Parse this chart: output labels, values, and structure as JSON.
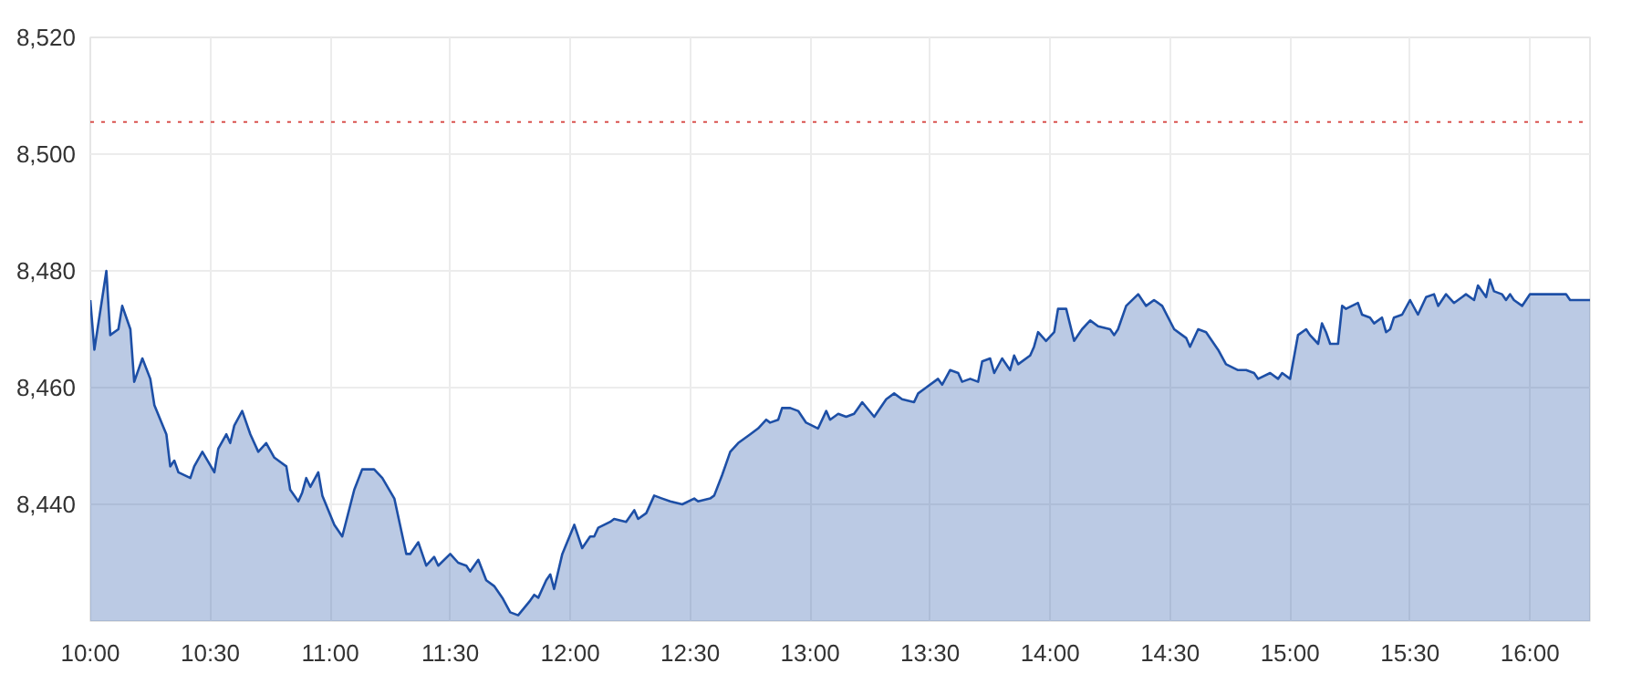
{
  "chart_data": {
    "type": "area",
    "x": [
      10.0,
      10.017,
      10.067,
      10.083,
      10.117,
      10.133,
      10.167,
      10.183,
      10.217,
      10.25,
      10.267,
      10.317,
      10.333,
      10.35,
      10.367,
      10.417,
      10.433,
      10.467,
      10.517,
      10.533,
      10.567,
      10.583,
      10.6,
      10.633,
      10.667,
      10.7,
      10.733,
      10.767,
      10.817,
      10.833,
      10.867,
      10.883,
      10.9,
      10.917,
      10.95,
      10.967,
      11.017,
      11.05,
      11.1,
      11.133,
      11.183,
      11.217,
      11.267,
      11.317,
      11.333,
      11.367,
      11.4,
      11.433,
      11.45,
      11.5,
      11.533,
      11.567,
      11.583,
      11.617,
      11.65,
      11.683,
      11.717,
      11.75,
      11.783,
      11.833,
      11.85,
      11.867,
      11.9,
      11.917,
      11.933,
      11.967,
      12.017,
      12.05,
      12.083,
      12.1,
      12.117,
      12.167,
      12.183,
      12.233,
      12.267,
      12.283,
      12.317,
      12.35,
      12.383,
      12.417,
      12.467,
      12.517,
      12.533,
      12.583,
      12.6,
      12.633,
      12.667,
      12.7,
      12.75,
      12.783,
      12.817,
      12.833,
      12.867,
      12.883,
      12.917,
      12.95,
      12.983,
      13.033,
      13.067,
      13.083,
      13.117,
      13.15,
      13.183,
      13.2,
      13.217,
      13.267,
      13.317,
      13.35,
      13.383,
      13.433,
      13.45,
      13.483,
      13.533,
      13.55,
      13.583,
      13.617,
      13.633,
      13.667,
      13.7,
      13.717,
      13.75,
      13.767,
      13.8,
      13.833,
      13.85,
      13.867,
      13.917,
      13.933,
      13.95,
      13.983,
      14.017,
      14.033,
      14.067,
      14.1,
      14.133,
      14.167,
      14.2,
      14.25,
      14.267,
      14.283,
      14.317,
      14.367,
      14.4,
      14.433,
      14.467,
      14.517,
      14.55,
      14.567,
      14.583,
      14.617,
      14.65,
      14.683,
      14.7,
      14.733,
      14.783,
      14.817,
      14.85,
      14.867,
      14.917,
      14.95,
      14.967,
      15.0,
      15.033,
      15.067,
      15.083,
      15.117,
      15.133,
      15.15,
      15.167,
      15.2,
      15.217,
      15.233,
      15.283,
      15.3,
      15.333,
      15.35,
      15.383,
      15.4,
      15.417,
      15.433,
      15.467,
      15.5,
      15.533,
      15.567,
      15.6,
      15.617,
      15.65,
      15.683,
      15.717,
      15.733,
      15.767,
      15.783,
      15.817,
      15.833,
      15.85,
      15.883,
      15.9,
      15.917,
      15.933,
      15.967,
      16.0,
      16.15,
      16.167,
      16.25
    ],
    "series": [
      {
        "color": "#1d4fa6",
        "values": [
          8475,
          8466.5,
          8480,
          8469,
          8470,
          8474,
          8470,
          8461,
          8465,
          8461.5,
          8457,
          8452,
          8446.5,
          8447.5,
          8445.5,
          8444.5,
          8446.5,
          8449,
          8445.5,
          8449.5,
          8452,
          8450.5,
          8453.5,
          8456,
          8452,
          8449,
          8450.5,
          8448,
          8446.5,
          8442.5,
          8440.5,
          8442,
          8444.5,
          8443,
          8445.5,
          8441.5,
          8436.5,
          8434.5,
          8442.5,
          8446,
          8446,
          8444.5,
          8441,
          8431.5,
          8431.5,
          8433.5,
          8429.5,
          8431,
          8429.5,
          8431.5,
          8430,
          8429.5,
          8428.5,
          8430.5,
          8427,
          8426,
          8424,
          8421.5,
          8421,
          8423.5,
          8424.5,
          8424,
          8427,
          8428,
          8425.5,
          8431.5,
          8436.5,
          8432.5,
          8434.5,
          8434.5,
          8436,
          8437,
          8437.5,
          8437,
          8439,
          8437.5,
          8438.5,
          8441.5,
          8441,
          8440.5,
          8440,
          8441,
          8440.5,
          8441,
          8441.5,
          8445,
          8449,
          8450.5,
          8452,
          8453,
          8454.5,
          8454,
          8454.5,
          8456.5,
          8456.5,
          8456,
          8454,
          8453,
          8456,
          8454.5,
          8455.5,
          8455,
          8455.5,
          8456.5,
          8457.5,
          8455,
          8458,
          8459,
          8458,
          8457.5,
          8459,
          8460,
          8461.5,
          8460.5,
          8463,
          8462.5,
          8461,
          8461.5,
          8461,
          8464.5,
          8465,
          8462.5,
          8465,
          8463,
          8465.5,
          8464,
          8465.5,
          8467,
          8469.5,
          8468,
          8469.5,
          8473.5,
          8473.5,
          8468,
          8470,
          8471.5,
          8470.5,
          8470,
          8469,
          8470,
          8474,
          8476,
          8474,
          8475,
          8474,
          8470,
          8469,
          8468.5,
          8467,
          8470,
          8469.5,
          8467.5,
          8466.5,
          8464,
          8463,
          8463,
          8462.5,
          8461.5,
          8462.5,
          8461.5,
          8462.5,
          8461.5,
          8469,
          8470,
          8469,
          8467.5,
          8471,
          8469.5,
          8467.5,
          8467.5,
          8474,
          8473.5,
          8474.5,
          8472.5,
          8472,
          8471,
          8472,
          8469.5,
          8470,
          8472,
          8472.5,
          8475,
          8472.5,
          8475.5,
          8476,
          8474,
          8476,
          8474.5,
          8475.5,
          8476,
          8475,
          8477.5,
          8475.5,
          8478.5,
          8476.5,
          8476,
          8475,
          8476,
          8475,
          8474,
          8476,
          8476,
          8475,
          8475
        ]
      }
    ],
    "xlim": [
      10,
      16.25
    ],
    "ylim": [
      8420,
      8520
    ],
    "xticks": [
      {
        "value": 10,
        "label": "10:00"
      },
      {
        "value": 10.5,
        "label": "10:30"
      },
      {
        "value": 11,
        "label": "11:00"
      },
      {
        "value": 11.5,
        "label": "11:30"
      },
      {
        "value": 12,
        "label": "12:00"
      },
      {
        "value": 12.5,
        "label": "12:30"
      },
      {
        "value": 13,
        "label": "13:00"
      },
      {
        "value": 13.5,
        "label": "13:30"
      },
      {
        "value": 14,
        "label": "14:00"
      },
      {
        "value": 14.5,
        "label": "14:30"
      },
      {
        "value": 15,
        "label": "15:00"
      },
      {
        "value": 15.5,
        "label": "15:30"
      },
      {
        "value": 16,
        "label": "16:00"
      }
    ],
    "yticks": [
      {
        "value": 8440,
        "label": "8,440"
      },
      {
        "value": 8460,
        "label": "8,460"
      },
      {
        "value": 8480,
        "label": "8,480"
      },
      {
        "value": 8500,
        "label": "8,500"
      },
      {
        "value": 8520,
        "label": "8,520"
      }
    ],
    "ref_lines": [
      {
        "axis": "y",
        "value": 8505.5,
        "color": "#d9534f",
        "line_style": "dotted"
      }
    ],
    "grid": true,
    "marker": "none",
    "line_style": "solid"
  }
}
